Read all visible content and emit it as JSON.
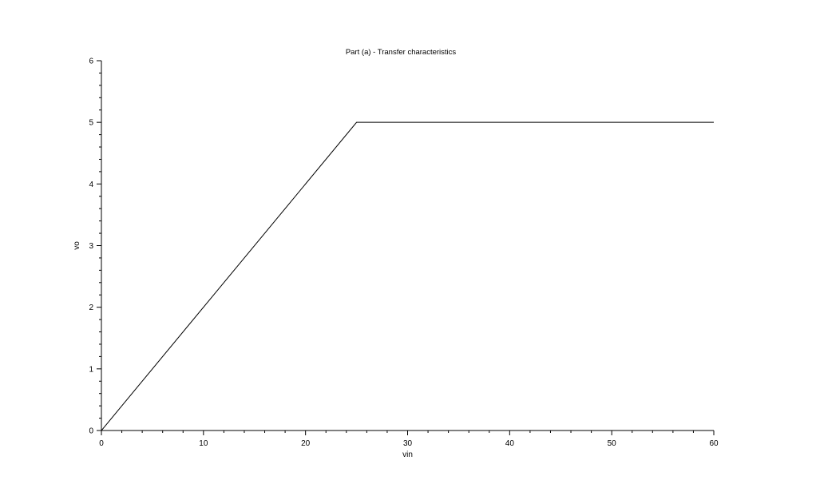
{
  "chart_data": {
    "type": "line",
    "title": "Part (a) - Transfer characteristics",
    "xlabel": "vin",
    "ylabel": "vo",
    "xlim": [
      0,
      60
    ],
    "ylim": [
      0,
      6
    ],
    "xticks": [
      0,
      10,
      20,
      30,
      40,
      50,
      60
    ],
    "yticks": [
      0,
      1,
      2,
      3,
      4,
      5,
      6
    ],
    "grid": false,
    "series": [
      {
        "x": [
          0,
          25,
          60
        ],
        "y": [
          0,
          5,
          5
        ]
      }
    ]
  }
}
